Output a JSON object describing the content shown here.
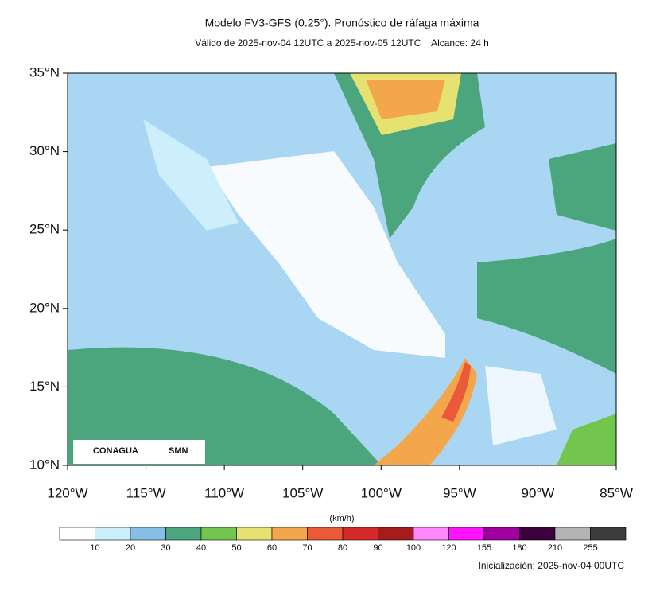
{
  "header": {
    "title": "Modelo FV3-GFS (0.25°). Pronóstico de ráfaga máxima",
    "subtitle": "Válido de 2025-nov-04 12UTC a 2025-nov-05 12UTC    Alcance: 24 h"
  },
  "map": {
    "lat_labels": [
      "35°N",
      "30°N",
      "25°N",
      "20°N",
      "15°N",
      "10°N"
    ],
    "lon_labels": [
      "120°W",
      "115°W",
      "110°W",
      "105°W",
      "100°W",
      "95°W",
      "90°W",
      "85°W"
    ],
    "logos": [
      "CONAGUA",
      "SMN"
    ]
  },
  "colorbar": {
    "unit": "(km/h)",
    "colors": [
      "#ffffff",
      "#cdeefb",
      "#86bfe6",
      "#4ba57d",
      "#72c64d",
      "#e6e272",
      "#f4a64c",
      "#ea5a38",
      "#d62a2a",
      "#a61c1c",
      "#ff88ff",
      "#ff14ff",
      "#a000a0",
      "#3c003c",
      "#b4b4b4",
      "#3c3c3c"
    ],
    "labels": [
      "10",
      "20",
      "30",
      "40",
      "50",
      "60",
      "70",
      "80",
      "90",
      "100",
      "120",
      "155",
      "180",
      "210",
      "255"
    ]
  },
  "footer": {
    "init": "Inicialización: 2025-nov-04 00UTC"
  }
}
